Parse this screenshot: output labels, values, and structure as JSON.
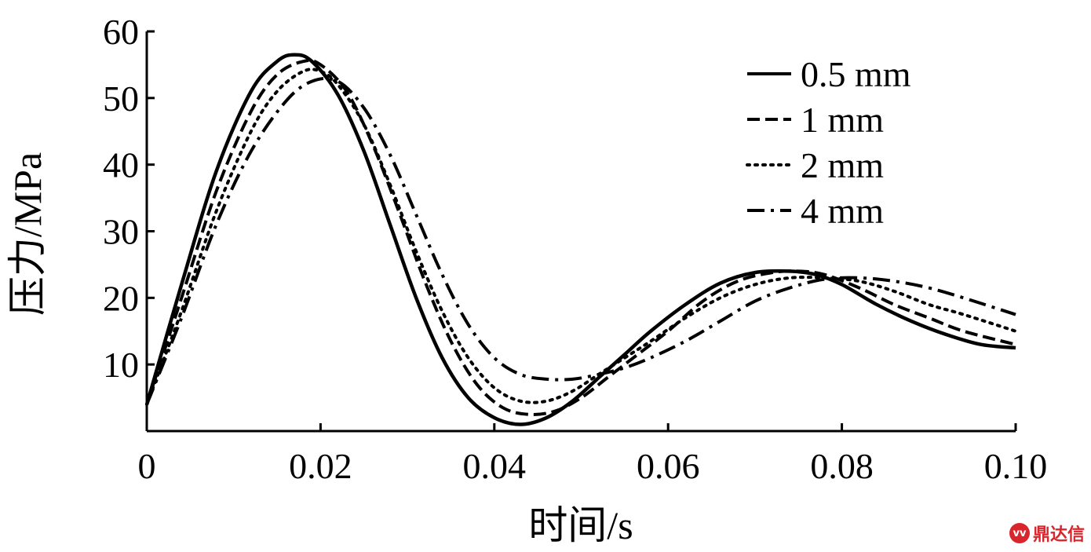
{
  "chart_data": {
    "type": "line",
    "xlabel": "时间/s",
    "ylabel": "压力/MPa",
    "xlim": [
      0,
      0.1
    ],
    "ylim": [
      0,
      60
    ],
    "xticks": [
      0,
      0.02,
      0.04,
      0.06,
      0.08,
      0.1
    ],
    "xtick_labels": [
      "0",
      "0.02",
      "0.04",
      "0.06",
      "0.08",
      "0.10"
    ],
    "yticks": [
      10,
      20,
      30,
      40,
      50,
      60
    ],
    "ytick_labels": [
      "10",
      "20",
      "30",
      "40",
      "50",
      "60"
    ],
    "grid": false,
    "legend_position": "top-right",
    "series": [
      {
        "name": "0.5 mm",
        "style": "solid",
        "x": [
          0,
          0.004,
          0.008,
          0.012,
          0.015,
          0.017,
          0.019,
          0.022,
          0.025,
          0.028,
          0.031,
          0.034,
          0.037,
          0.04,
          0.043,
          0.046,
          0.049,
          0.052,
          0.055,
          0.058,
          0.062,
          0.066,
          0.07,
          0.074,
          0.077,
          0.08,
          0.084,
          0.088,
          0.092,
          0.096,
          0.1
        ],
        "y": [
          4,
          22,
          39,
          51,
          55.5,
          56.5,
          55.5,
          50.5,
          42,
          31,
          20,
          11,
          5,
          2,
          1,
          2,
          4.5,
          8,
          11.5,
          15,
          19,
          22.2,
          23.8,
          24,
          23.5,
          22,
          19,
          16.5,
          14.5,
          13,
          12.5
        ]
      },
      {
        "name": "1 mm",
        "style": "dashed",
        "x": [
          0,
          0.004,
          0.008,
          0.012,
          0.015,
          0.018,
          0.02,
          0.023,
          0.026,
          0.029,
          0.032,
          0.035,
          0.038,
          0.041,
          0.044,
          0.047,
          0.05,
          0.053,
          0.056,
          0.06,
          0.064,
          0.068,
          0.072,
          0.075,
          0.078,
          0.082,
          0.086,
          0.09,
          0.094,
          0.1
        ],
        "y": [
          4,
          20,
          36,
          48,
          53.5,
          55.5,
          55,
          51,
          43,
          33,
          22.5,
          13.5,
          7,
          3.5,
          2.5,
          3,
          5,
          8,
          11,
          15,
          19.5,
          22.5,
          23.8,
          24,
          23.5,
          21.5,
          19,
          17,
          15,
          13
        ]
      },
      {
        "name": "2 mm",
        "style": "dotted",
        "x": [
          0,
          0.004,
          0.008,
          0.012,
          0.015,
          0.018,
          0.02,
          0.022,
          0.025,
          0.028,
          0.031,
          0.034,
          0.037,
          0.04,
          0.043,
          0.046,
          0.049,
          0.052,
          0.055,
          0.058,
          0.062,
          0.066,
          0.07,
          0.074,
          0.078,
          0.082,
          0.086,
          0.09,
          0.094,
          0.1
        ],
        "y": [
          4,
          18,
          33,
          45,
          51,
          54,
          54,
          52,
          46,
          37,
          27,
          18,
          11,
          6.5,
          4.5,
          4.5,
          6,
          8.5,
          11,
          13.5,
          17,
          20,
          22,
          23,
          23,
          22.5,
          21,
          19,
          17.5,
          15
        ]
      },
      {
        "name": "4 mm",
        "style": "dashdot",
        "x": [
          0,
          0.004,
          0.008,
          0.012,
          0.016,
          0.019,
          0.022,
          0.025,
          0.028,
          0.031,
          0.034,
          0.037,
          0.04,
          0.043,
          0.046,
          0.049,
          0.052,
          0.055,
          0.058,
          0.062,
          0.066,
          0.07,
          0.074,
          0.078,
          0.082,
          0.086,
          0.09,
          0.094,
          0.1
        ],
        "y": [
          4,
          17,
          31,
          42,
          49.5,
          52.5,
          52.5,
          48.5,
          41.5,
          32.5,
          23.5,
          16,
          11,
          8.5,
          7.8,
          7.8,
          8.5,
          9.5,
          11,
          13.5,
          16.5,
          19.5,
          21.5,
          22.8,
          23,
          22.5,
          21.5,
          20,
          17.5
        ]
      }
    ]
  },
  "watermark": {
    "icon_text": "vv",
    "text": "鼎达信",
    "color": "#d9262c"
  }
}
